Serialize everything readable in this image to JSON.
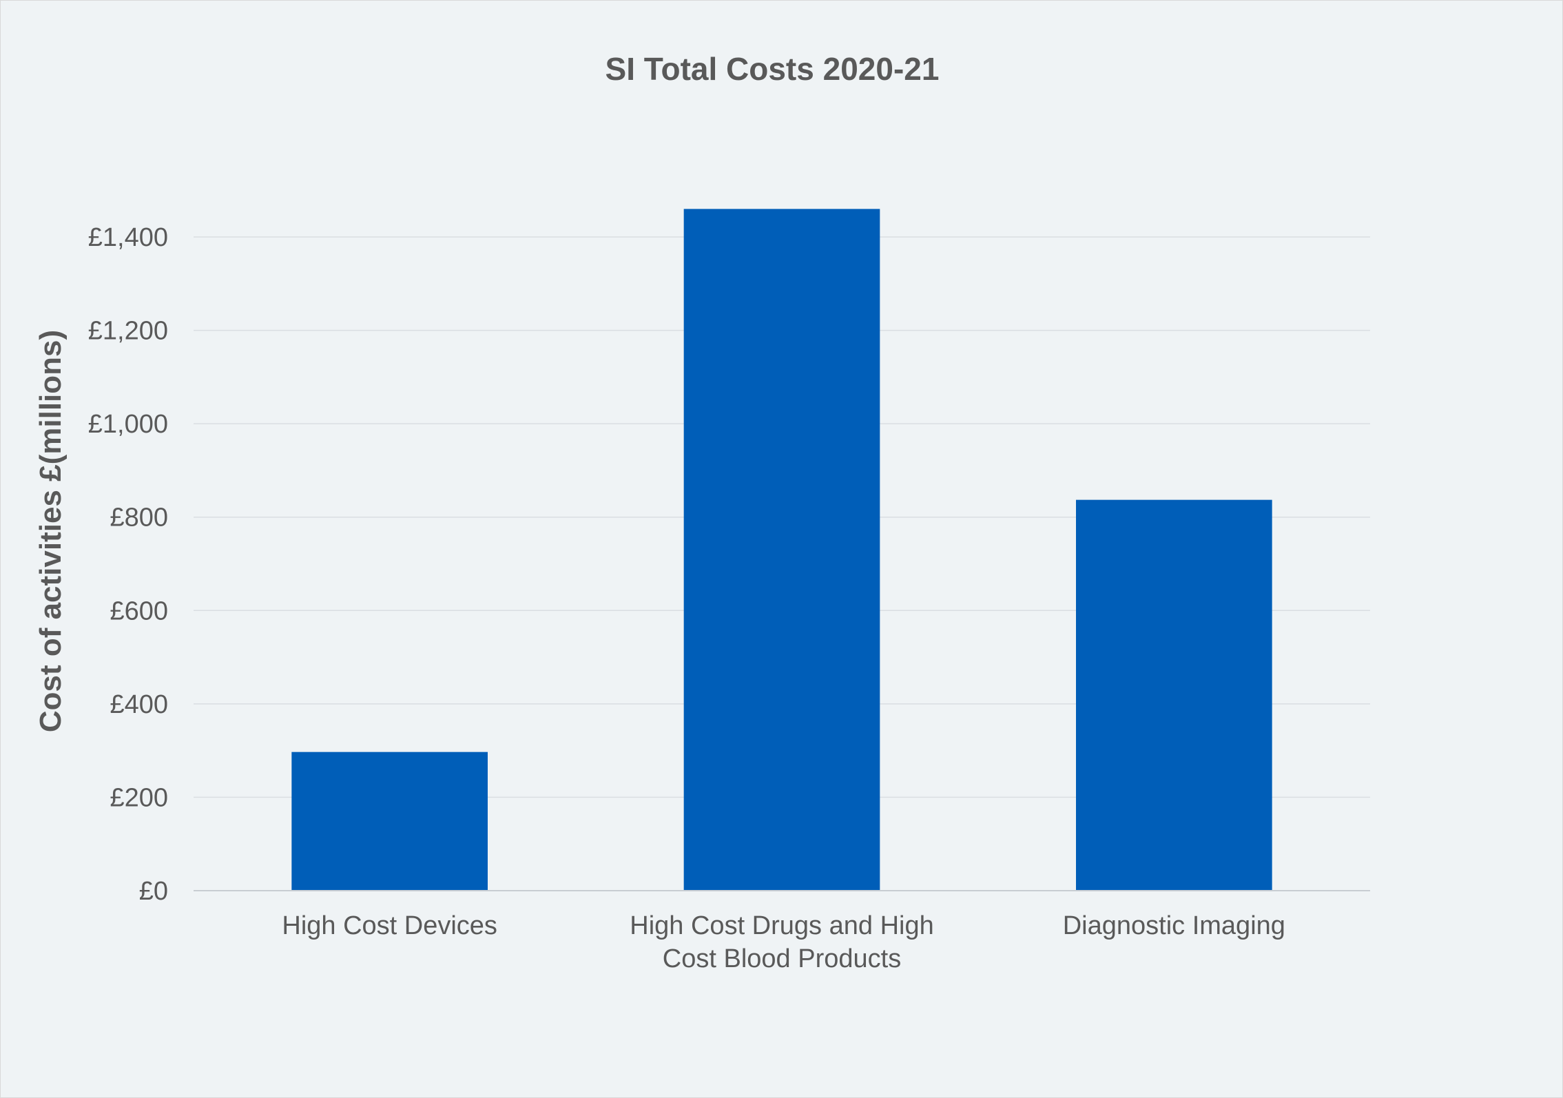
{
  "chart_data": {
    "type": "bar",
    "title": "SI Total Costs 2020-21",
    "xlabel": "",
    "ylabel": "Cost of activities £(millions)",
    "categories": [
      [
        "High Cost Devices"
      ],
      [
        "High Cost Drugs and High",
        "Cost Blood Products"
      ],
      [
        "Diagnostic Imaging"
      ]
    ],
    "values": [
      297,
      1460,
      837
    ],
    "ylim": [
      0,
      1400
    ],
    "yticks": [
      0,
      200,
      400,
      600,
      800,
      1000,
      1200,
      1400
    ],
    "ytick_labels": [
      "£0",
      "£200",
      "£400",
      "£600",
      "£800",
      "£1,000",
      "£1,200",
      "£1,400"
    ],
    "bar_color": "#005EB8",
    "grid": true,
    "legend": "none"
  },
  "colors": {
    "background": "#eff3f5",
    "text": "#595959",
    "bar": "#005EB8"
  }
}
